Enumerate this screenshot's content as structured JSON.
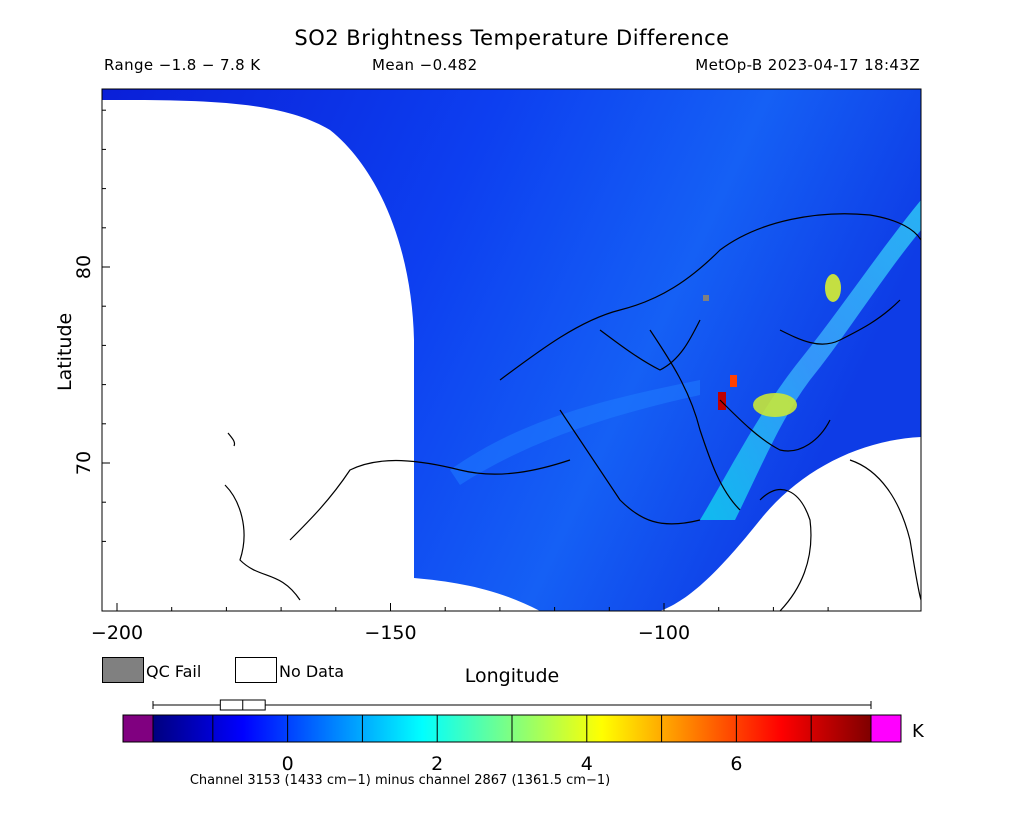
{
  "chart_data": {
    "type": "heatmap",
    "title": "SO2 Brightness Temperature Difference",
    "range_text": "Range −1.8 − 7.8 K",
    "mean_text": "Mean −0.482",
    "satellite_text": "MetOp-B 2023-04-17 18:43Z",
    "xlabel": "Longitude",
    "ylabel": "Latitude",
    "x_ticks": [
      {
        "value": -200,
        "label": "−200"
      },
      {
        "value": -150,
        "label": "−150"
      },
      {
        "value": -100,
        "label": "−100"
      }
    ],
    "y_ticks": [
      {
        "value": 70,
        "label": "70"
      },
      {
        "value": 80,
        "label": "80"
      }
    ],
    "legend": [
      {
        "label": "QC Fail",
        "color": "#808080"
      },
      {
        "label": "No Data",
        "color": "#ffffff"
      }
    ],
    "colorbar": {
      "range": [
        -1.8,
        7.8
      ],
      "ticks": [
        {
          "value": 0,
          "label": "0"
        },
        {
          "value": 2,
          "label": "2"
        },
        {
          "value": 4,
          "label": "4"
        },
        {
          "value": 6,
          "label": "6"
        }
      ],
      "unit": "K",
      "colors": [
        "#00007f",
        "#0000ff",
        "#0080ff",
        "#00ffff",
        "#80ff80",
        "#ffff00",
        "#ff8000",
        "#ff0000",
        "#7f0000"
      ],
      "under_color": "#800080",
      "over_color": "#ff00ff",
      "caption": "Channel 3153 (1433 cm−1) minus channel 2867 (1361.5 cm−1)",
      "boxplot": {
        "min": -1.8,
        "q1": -0.9,
        "median": -0.6,
        "q3": -0.3,
        "max": 7.8
      }
    }
  }
}
